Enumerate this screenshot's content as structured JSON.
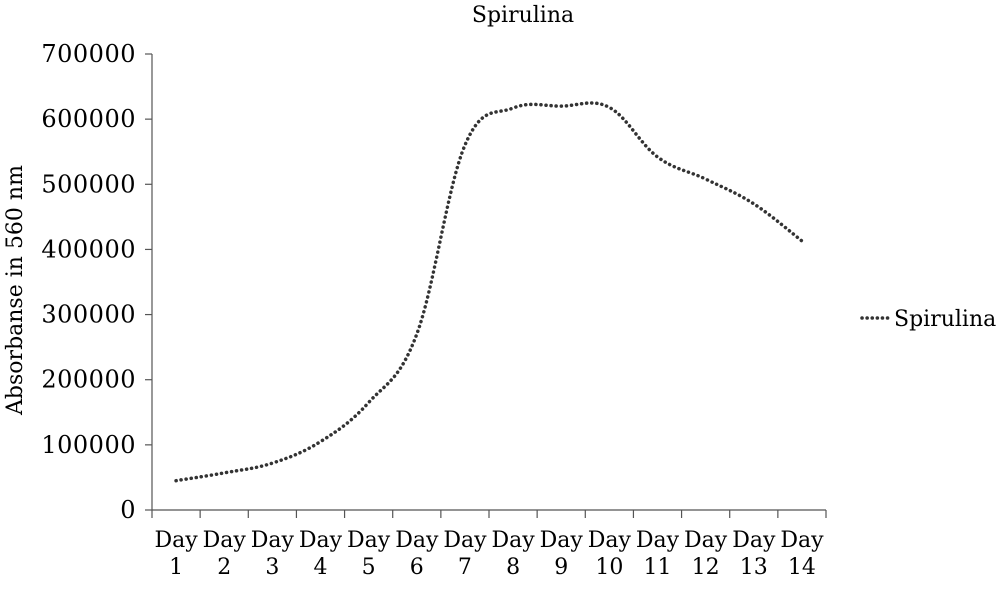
{
  "chart_data": {
    "type": "line",
    "title": "Spirulina",
    "xlabel": "",
    "ylabel": "Absorbanse in 560 nm",
    "categories": [
      [
        "Day",
        "1"
      ],
      [
        "Day",
        "2"
      ],
      [
        "Day",
        "3"
      ],
      [
        "Day",
        "4"
      ],
      [
        "Day",
        "5"
      ],
      [
        "Day",
        "6"
      ],
      [
        "Day",
        "7"
      ],
      [
        "Day",
        "8"
      ],
      [
        "Day",
        "9"
      ],
      [
        "Day",
        "10"
      ],
      [
        "Day",
        "11"
      ],
      [
        "Day",
        "12"
      ],
      [
        "Day",
        "13"
      ],
      [
        "Day",
        "14"
      ]
    ],
    "series": [
      {
        "name": "Spirulina",
        "values": [
          45000,
          57000,
          72000,
          105000,
          165000,
          270000,
          560000,
          617000,
          620000,
          618000,
          542000,
          508000,
          470000,
          413000
        ],
        "line_style": "dotted",
        "color": "#333333"
      }
    ],
    "yticks": [
      0,
      100000,
      200000,
      300000,
      400000,
      500000,
      600000,
      700000
    ],
    "ylim": [
      0,
      700000
    ],
    "grid": false,
    "legend_position": "right"
  }
}
